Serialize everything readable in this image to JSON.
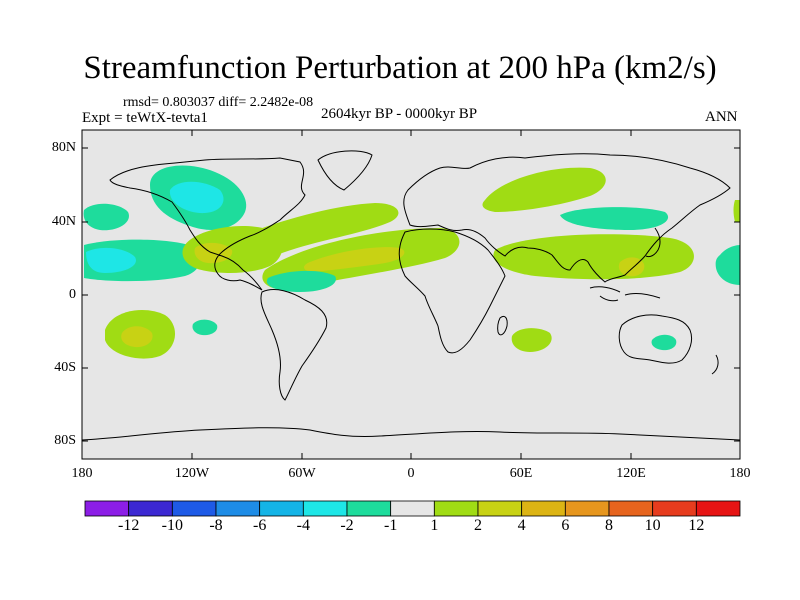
{
  "title": "Streamfunction Perturbation at 200 hPa (km2/s)",
  "stats": "rmsd= 0.803037 diff= 2.2482e-08",
  "experiment": "Expt = teWtX-tevta1",
  "period": "2604kyr BP - 0000kyr BP",
  "season": "ANN",
  "axes": {
    "lat_labels": [
      "80N",
      "40N",
      "0",
      "40S",
      "80S"
    ],
    "lon_labels": [
      "180",
      "120W",
      "60W",
      "0",
      "60E",
      "120E",
      "180"
    ]
  },
  "colorbar": {
    "labels": [
      "-12",
      "-10",
      "-8",
      "-6",
      "-4",
      "-2",
      "-1",
      "1",
      "2",
      "4",
      "6",
      "8",
      "10",
      "12"
    ],
    "colors": [
      "#8c1ee6",
      "#3c28d2",
      "#1e5ae6",
      "#1e8ce6",
      "#14b4e6",
      "#1ee6e6",
      "#1edc9c",
      "#e6e6e6",
      "#a0dc14",
      "#c8d214",
      "#dcb414",
      "#e6961e",
      "#e6641e",
      "#e63c1e",
      "#e61414"
    ]
  },
  "colors": {
    "background": "#e6e6e6",
    "minus1": "#1edc9c",
    "minus2": "#1ee6e6",
    "minus4": "#14b4e6",
    "plus1": "#a0dc14",
    "plus2": "#c8d214",
    "plus4": "#dcb414"
  }
}
